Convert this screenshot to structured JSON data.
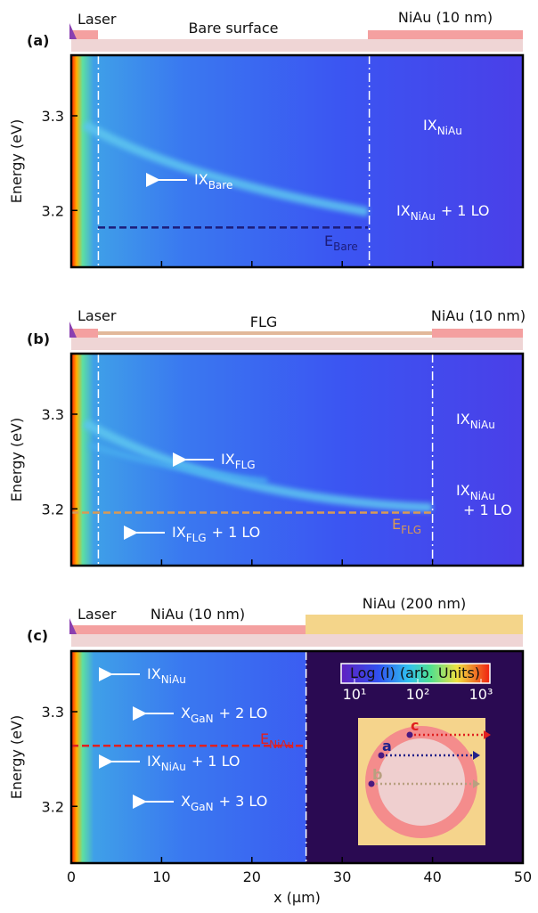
{
  "chart_data": [
    {
      "type": "heatmap",
      "panel": "(a)",
      "labels": [
        "Laser",
        "Bare surface",
        "NiAu (10 nm)"
      ],
      "ylabel": "Energy (eV)",
      "xlim": [
        0,
        50
      ],
      "xticks": [
        0,
        10,
        20,
        30,
        40,
        50
      ],
      "ylim": [
        3.14,
        3.364
      ],
      "yticks": [
        3.2,
        3.3
      ],
      "vlines": [
        3,
        33
      ],
      "hline": {
        "value": 3.182,
        "color": "#1c1c7a",
        "text": "E",
        "sub": "Bare"
      },
      "annotations": [
        {
          "text": "IX",
          "sub": "Bare"
        },
        {
          "text": "IX",
          "sub": "NiAu"
        },
        {
          "text": "IX",
          "sub": "NiAu",
          "suffix": "+ 1 LO"
        }
      ]
    },
    {
      "type": "heatmap",
      "panel": "(b)",
      "labels": [
        "Laser",
        "FLG",
        "NiAu (10 nm)"
      ],
      "ylabel": "Energy (eV)",
      "xlim": [
        0,
        50
      ],
      "xticks": [
        0,
        10,
        20,
        30,
        40,
        50
      ],
      "ylim": [
        3.14,
        3.364
      ],
      "yticks": [
        3.2,
        3.3
      ],
      "vlines": [
        3,
        40
      ],
      "hline": {
        "value": 3.196,
        "color": "#d99a55",
        "text": "E",
        "sub": "FLG"
      },
      "annotations": [
        {
          "text": "IX",
          "sub": "FLG"
        },
        {
          "text": "IX",
          "sub": "FLG",
          "suffix": "+ 1 LO"
        },
        {
          "text": "IX",
          "sub": "NiAu"
        },
        {
          "text": "IX",
          "sub": "NiAu",
          "suffix": "+ 1 LO"
        }
      ]
    },
    {
      "type": "heatmap",
      "panel": "(c)",
      "labels": [
        "Laser",
        "NiAu (10 nm)",
        "NiAu (200 nm)"
      ],
      "ylabel": "Energy (eV)",
      "xlabel": "x (μm)",
      "xlim": [
        0,
        50
      ],
      "xticks": [
        0,
        10,
        20,
        30,
        40,
        50
      ],
      "ylim": [
        3.14,
        3.364
      ],
      "yticks": [
        3.2,
        3.3
      ],
      "vlines": [
        26
      ],
      "hline": {
        "value": 3.264,
        "color": "#e02020",
        "text": "E",
        "sub": "NiAu"
      },
      "annotations": [
        {
          "text": "IX",
          "sub": "NiAu"
        },
        {
          "text": "X",
          "sub": "GaN",
          "suffix": "+ 2 LO"
        },
        {
          "text": "IX",
          "sub": "NiAu",
          "suffix": "+ 1 LO"
        },
        {
          "text": "X",
          "sub": "GaN",
          "suffix": "+ 3 LO"
        }
      ],
      "colorbar": {
        "label": "Log (I) (arb. Units)",
        "ticks": [
          {
            "value": 10,
            "label": "10¹"
          },
          {
            "value": 100,
            "label": "10²"
          },
          {
            "value": 1000,
            "label": "10³"
          }
        ]
      },
      "inset": {
        "labels": [
          "c",
          "a",
          "b"
        ]
      }
    }
  ]
}
